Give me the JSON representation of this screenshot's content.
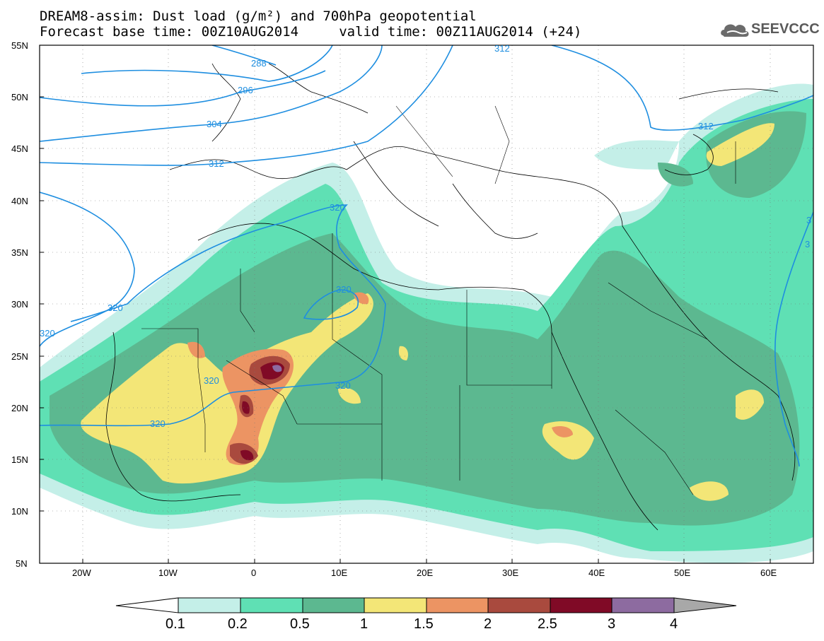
{
  "header": {
    "line1": "DREAM8-assim: Dust load (g/m²) and 700hPa geopotential",
    "line2": "Forecast base time: 00Z10AUG2014     valid time: 00Z11AUG2014 (+24)"
  },
  "logo": {
    "text": "SEEVCCC",
    "icon": "cloud-logo-icon"
  },
  "axes": {
    "lat_labels": [
      "55N",
      "50N",
      "45N",
      "40N",
      "35N",
      "30N",
      "25N",
      "20N",
      "15N",
      "10N",
      "5N"
    ],
    "lon_labels": [
      "20W",
      "10W",
      "0",
      "10E",
      "20E",
      "30E",
      "40E",
      "50E",
      "60E"
    ]
  },
  "contours": {
    "labels": [
      "288",
      "296",
      "304",
      "312",
      "320",
      "312",
      "320",
      "320",
      "320",
      "320",
      "320",
      "320",
      "312",
      "3",
      "3"
    ]
  },
  "colorbar": {
    "ticks": [
      "0.1",
      "0.2",
      "0.5",
      "1",
      "1.5",
      "2",
      "2.5",
      "3",
      "4"
    ],
    "colors": [
      "#ffffff",
      "#c4efe8",
      "#5fe0b4",
      "#5cb890",
      "#f3e677",
      "#ec9463",
      "#a94a3e",
      "#800a26",
      "#8d6ba0",
      "#a8a8a8"
    ]
  },
  "legend_colors": {
    "c01": "#c4efe8",
    "c02": "#5fe0b4",
    "c05": "#5cb890",
    "c1": "#f3e677",
    "c15": "#ec9463",
    "c2": "#a94a3e",
    "c25": "#800a26",
    "c3": "#8d6ba0",
    "geopotential_line": "#1e8ee0"
  }
}
